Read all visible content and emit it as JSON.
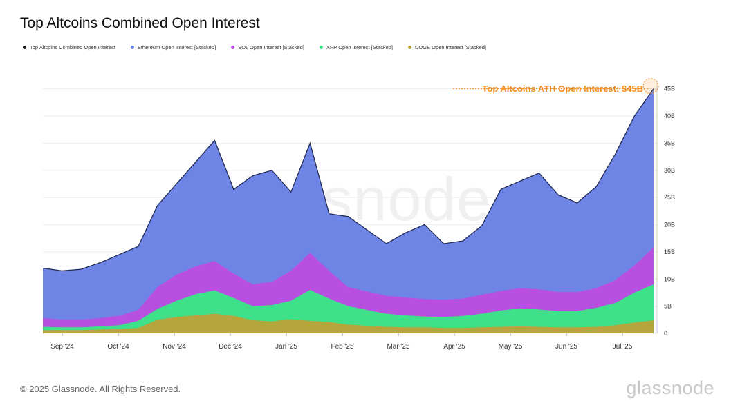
{
  "header": {
    "title": "Top Altcoins Combined Open Interest"
  },
  "legend": [
    {
      "label": "Top Altcoins Combined Open Interest",
      "color": "#111111"
    },
    {
      "label": "Ethereum Open Interest [Stacked]",
      "color": "#6f85e6"
    },
    {
      "label": "SOL Open Interest [Stacked]",
      "color": "#b94fe0"
    },
    {
      "label": "XRP Open Interest [Stacked]",
      "color": "#3ee08a"
    },
    {
      "label": "DOGE Open Interest [Stacked]",
      "color": "#b5a53c"
    }
  ],
  "annotation": {
    "text": "Top Altcoins ATH Open Interest: $45B",
    "color": "#f28c1e"
  },
  "watermark": "glassnode",
  "footer": {
    "copyright": "© 2025 Glassnode. All Rights Reserved.",
    "brand": "glassnode"
  },
  "chart_data": {
    "type": "area",
    "title": "Top Altcoins Combined Open Interest",
    "x_labels": [
      "Sep '24",
      "Oct '24",
      "Nov '24",
      "Dec '24",
      "Jan '25",
      "Feb '25",
      "Mar '25",
      "Apr '25",
      "May '25",
      "Jun '25",
      "Jul '25"
    ],
    "y_ticks": [
      "0",
      "5B",
      "10B",
      "15B",
      "20B",
      "25B",
      "30B",
      "35B",
      "40B",
      "45B"
    ],
    "ylim": [
      0,
      48
    ],
    "y_unit": "B",
    "x": [
      "Sep '24 (start)",
      "Sep '24",
      "mid Sep",
      "Oct '24",
      "mid Oct",
      "Nov '24",
      "mid Nov",
      "late Nov",
      "Dec '24",
      "early Dec",
      "mid Dec",
      "late Dec",
      "Jan '25",
      "mid Jan",
      "late Jan",
      "Feb '25",
      "early Feb",
      "mid Feb",
      "Mar '25",
      "mid Mar",
      "Apr '25",
      "mid Apr",
      "late Apr",
      "May '25",
      "early May",
      "mid May",
      "Jun '25",
      "mid Jun",
      "late Jun",
      "Jul '25",
      "mid Jul",
      "late Jul",
      "end Jul"
    ],
    "series": [
      {
        "name": "DOGE Open Interest [Stacked]",
        "color": "#b5a53c",
        "values": [
          0.6,
          0.6,
          0.6,
          0.7,
          0.8,
          1.0,
          2.5,
          3.0,
          3.3,
          3.6,
          3.2,
          2.4,
          2.2,
          2.6,
          2.3,
          2.1,
          1.6,
          1.4,
          1.2,
          1.1,
          1.1,
          1.0,
          1.0,
          1.1,
          1.2,
          1.3,
          1.2,
          1.1,
          1.1,
          1.2,
          1.5,
          2.0,
          2.4
        ]
      },
      {
        "name": "XRP Open Interest [Stacked]",
        "color": "#3ee08a",
        "values": [
          1.2,
          1.1,
          1.1,
          1.3,
          1.5,
          2.3,
          4.5,
          6.0,
          7.2,
          7.9,
          6.5,
          5.0,
          5.2,
          6.0,
          8.0,
          6.4,
          5.0,
          4.3,
          3.6,
          3.3,
          3.1,
          3.0,
          3.2,
          3.6,
          4.2,
          4.6,
          4.4,
          4.1,
          4.1,
          4.7,
          5.6,
          7.5,
          9.0
        ]
      },
      {
        "name": "SOL Open Interest [Stacked]",
        "color": "#b94fe0",
        "values": [
          2.8,
          2.5,
          2.5,
          2.8,
          3.2,
          4.3,
          8.5,
          10.8,
          12.3,
          13.3,
          11.0,
          9.0,
          9.5,
          11.5,
          14.8,
          11.5,
          8.5,
          7.7,
          6.9,
          6.6,
          6.3,
          6.2,
          6.4,
          7.1,
          7.8,
          8.3,
          8.1,
          7.6,
          7.6,
          8.3,
          9.8,
          12.5,
          15.8
        ]
      },
      {
        "name": "Top Altcoins Combined Open Interest",
        "color": "#111111",
        "values": [
          12.0,
          11.5,
          11.8,
          13.0,
          14.5,
          16.0,
          23.5,
          27.5,
          31.5,
          35.5,
          26.5,
          29.0,
          30.0,
          26.0,
          35.0,
          22.0,
          21.5,
          19.0,
          16.5,
          18.5,
          20.0,
          16.5,
          17.0,
          19.8,
          26.5,
          28.0,
          29.5,
          25.5,
          24.0,
          27.0,
          33.0,
          40.0,
          45.0
        ]
      }
    ]
  }
}
